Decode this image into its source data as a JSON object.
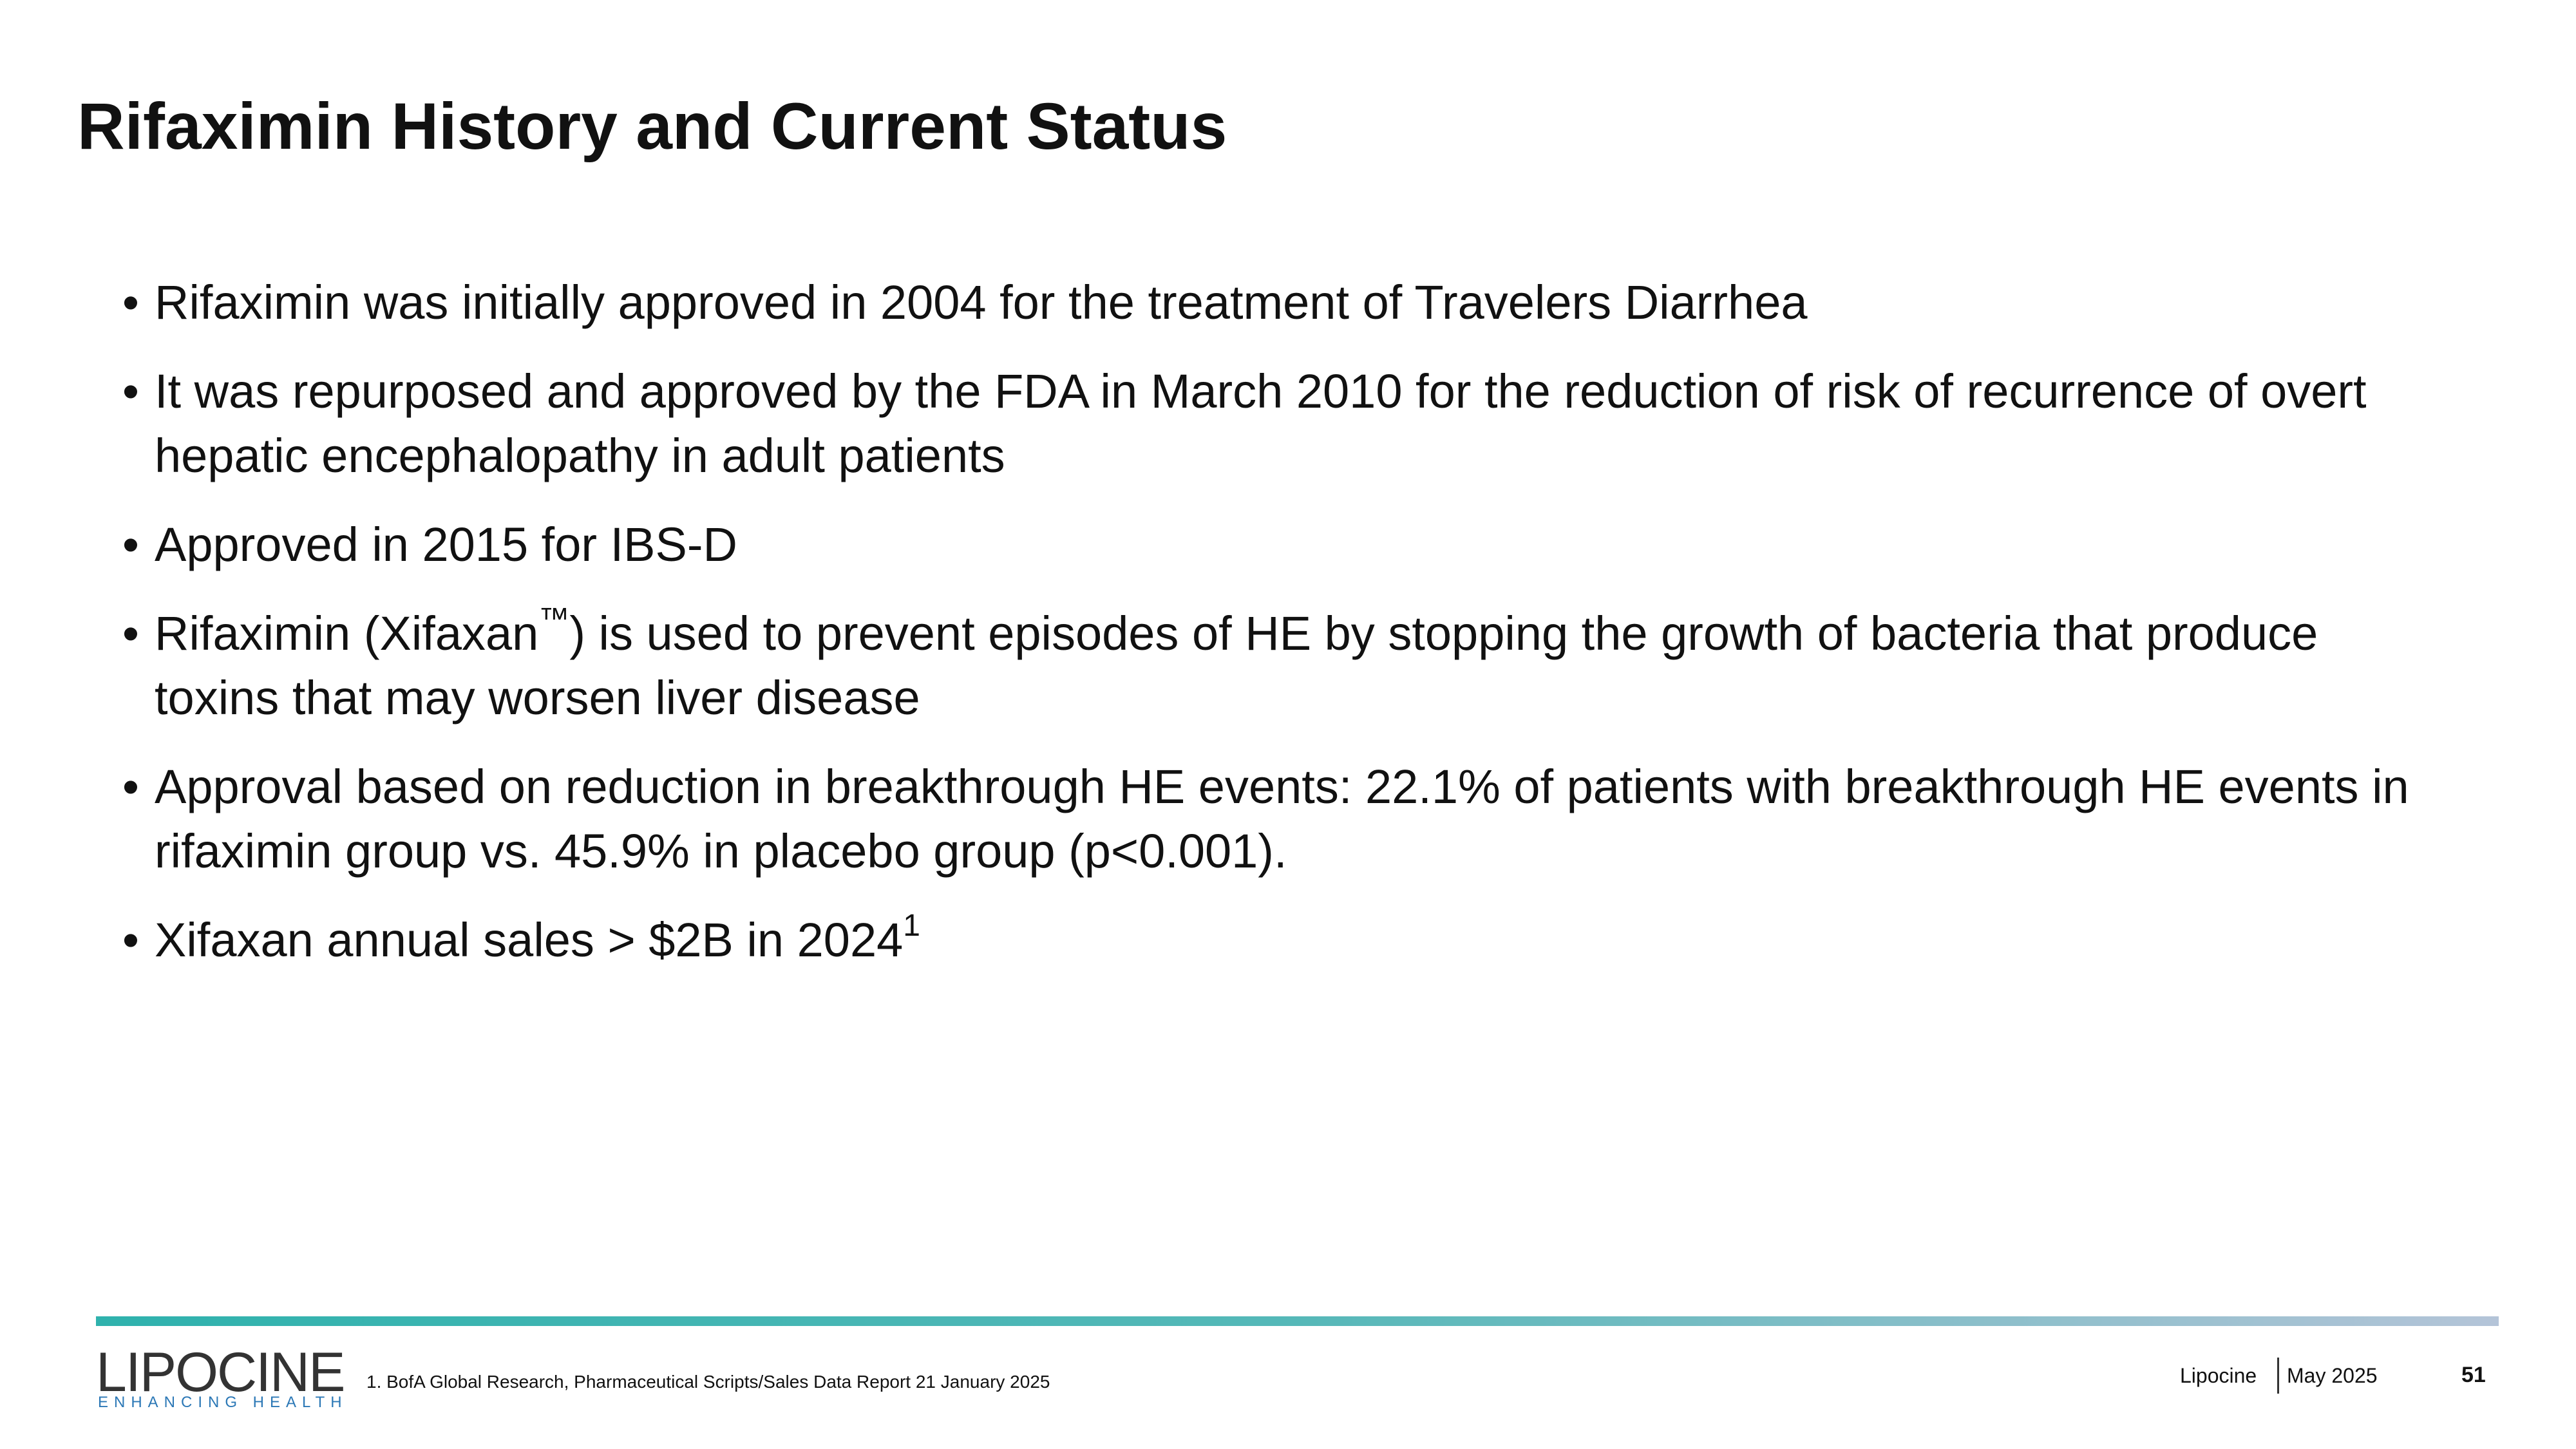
{
  "header": {
    "title": "Rifaximin History and Current Status"
  },
  "bullets": [
    {
      "text": "Rifaximin was initially approved in 2004 for the treatment of Travelers Diarrhea"
    },
    {
      "text": "It was repurposed and approved by the FDA in March 2010 for the reduction of risk of recurrence of overt hepatic encephalopathy in adult patients"
    },
    {
      "text": "Approved in 2015 for IBS-D"
    },
    {
      "text": "Rifaximin (Xifaxan",
      "sup": "™",
      "after": ") is used to prevent episodes of HE by stopping the growth of bacteria that produce toxins that may worsen liver disease"
    },
    {
      "text": "Approval based on reduction in breakthrough HE events: 22.1% of patients with breakthrough HE events in rifaximin group vs. 45.9% in placebo group (p<0.001)."
    },
    {
      "text": "Xifaxan annual sales > $2B in 2024",
      "sup": "1"
    }
  ],
  "footer": {
    "logo": "LIPOCINE",
    "tagline": "ENHANCING HEALTH",
    "footnote": "1. BofA Global Research, Pharmaceutical Scripts/Sales Data Report  21 January 2025",
    "company": "Lipocine",
    "date": "May 2025",
    "page": "51"
  }
}
